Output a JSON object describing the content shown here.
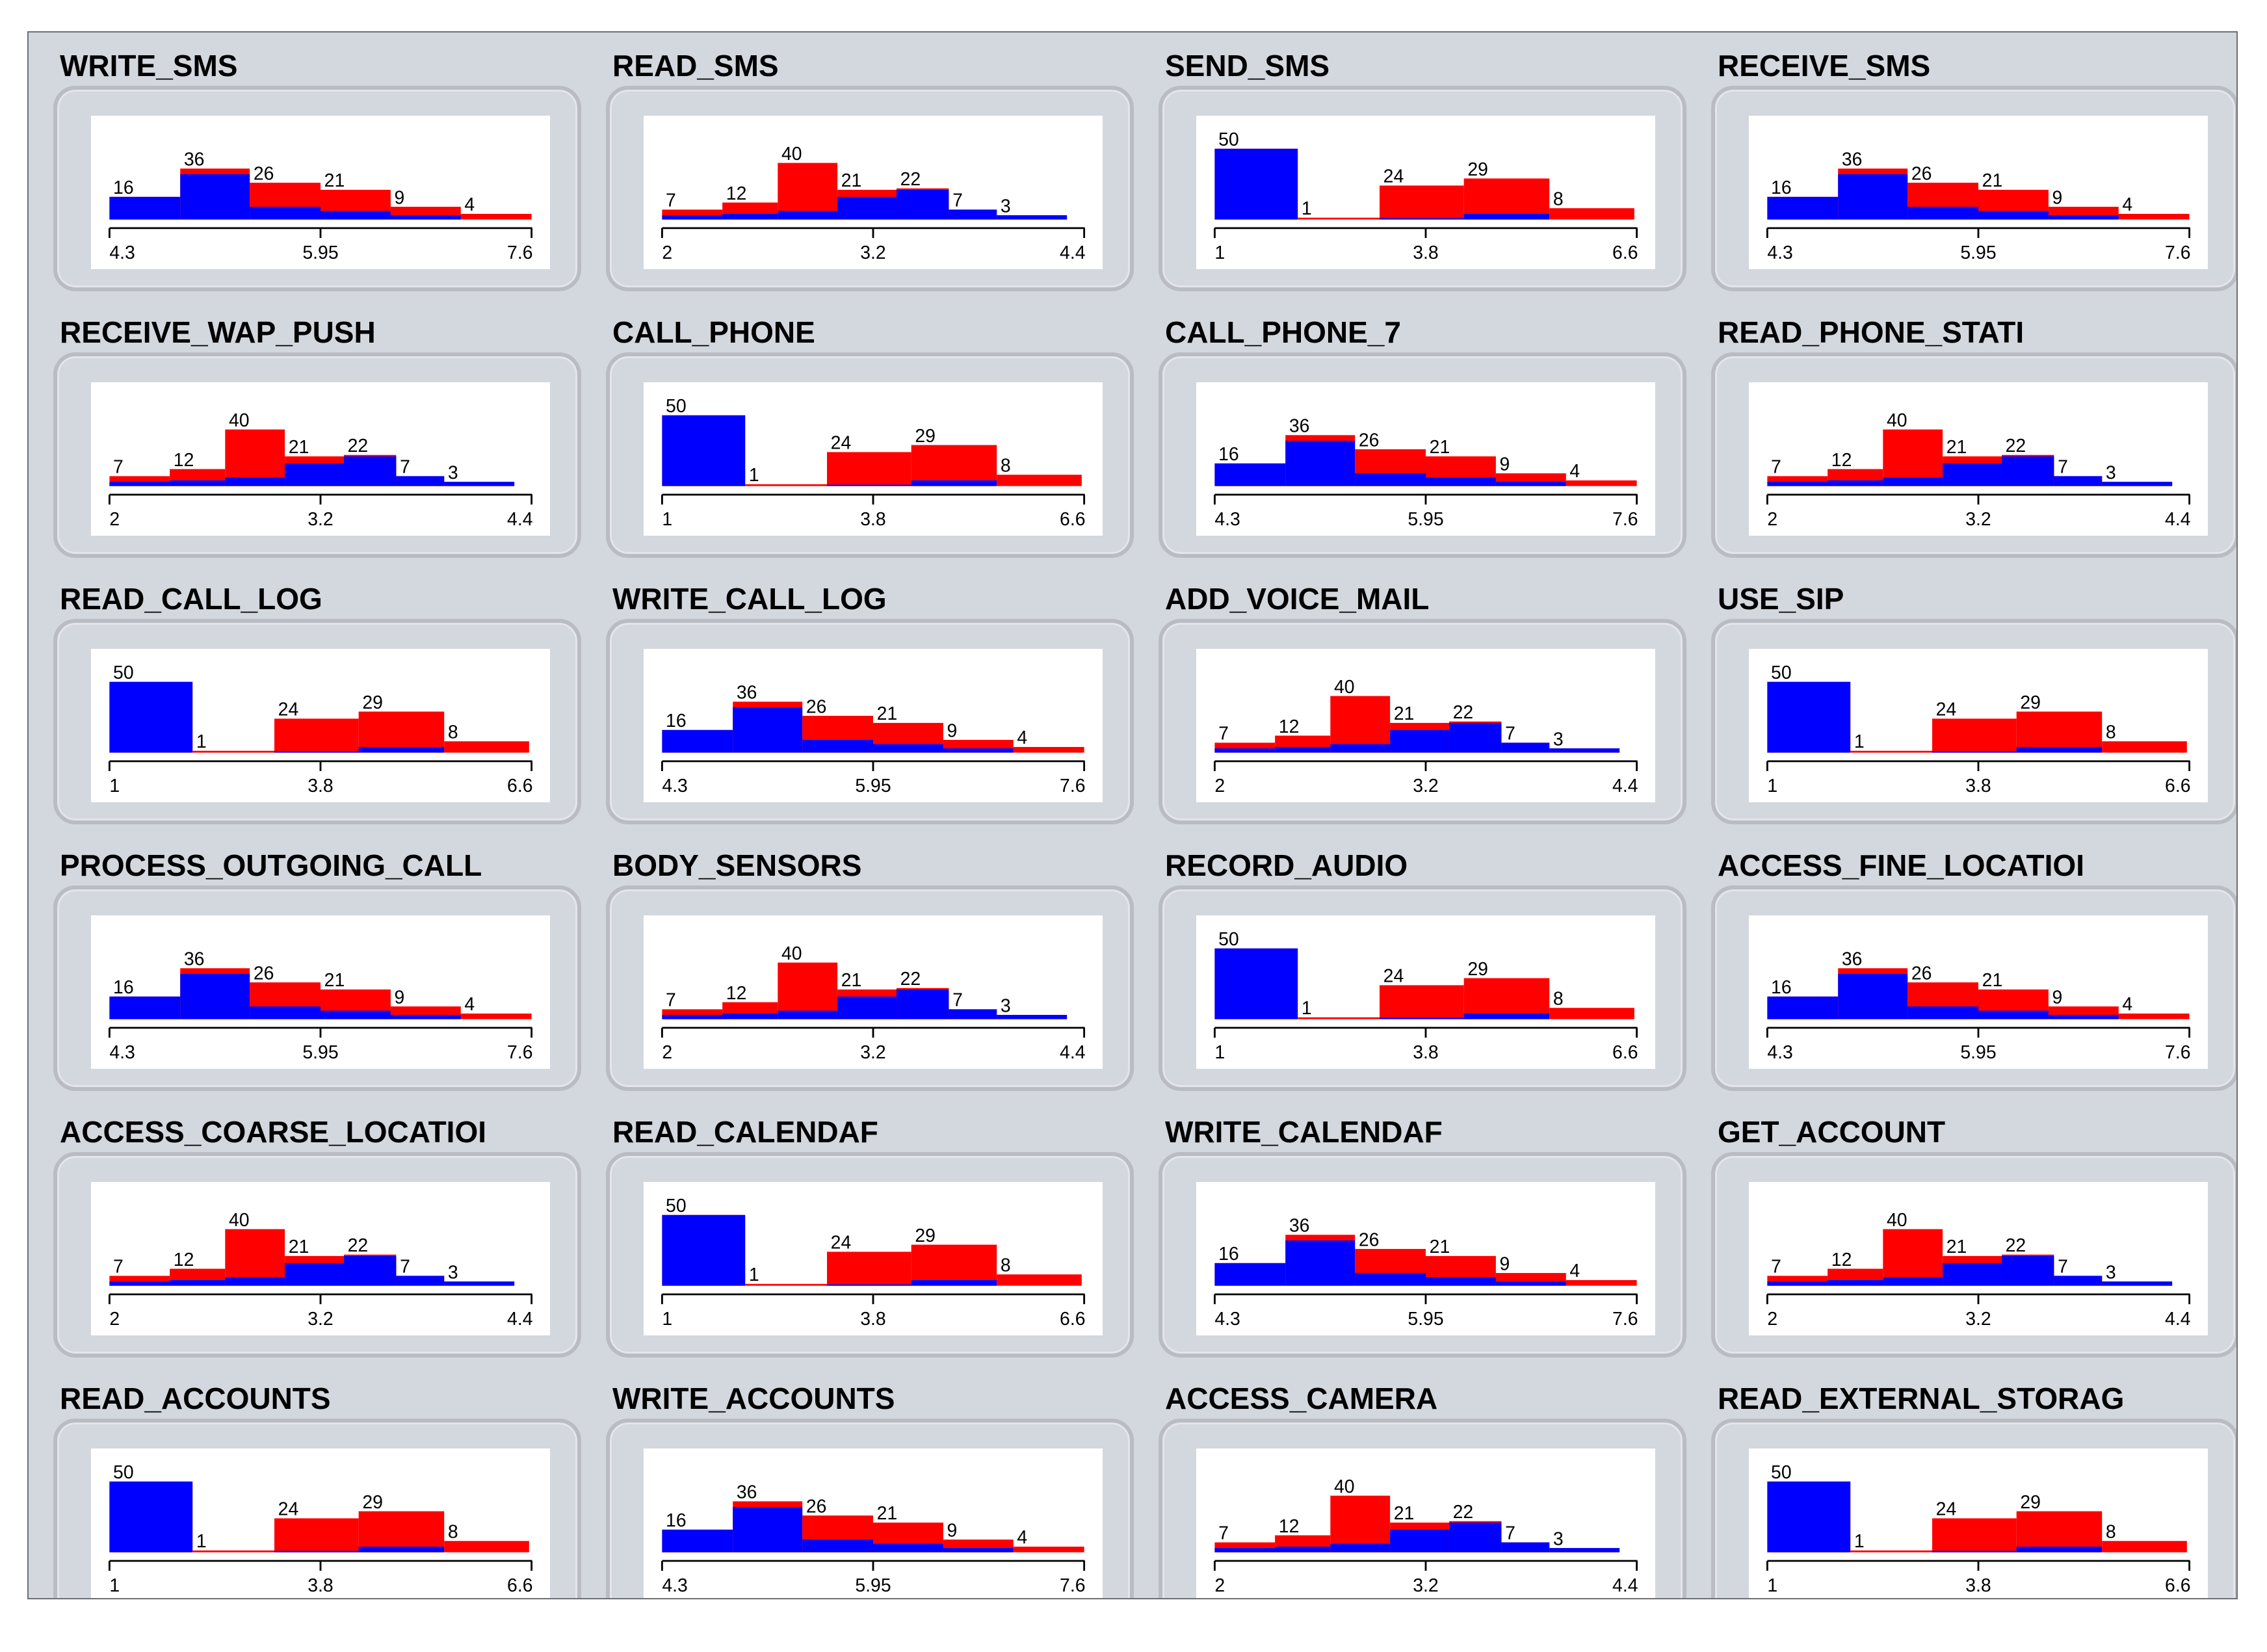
{
  "panel": {
    "columns": 4,
    "colors": {
      "blue": "#0000ff",
      "red": "#ff0000",
      "background": "#d3d7de",
      "plot_background": "#ffffff"
    }
  },
  "chart_data": [
    {
      "type": "bar",
      "title": "WRITE_SMS",
      "profile": "A",
      "ticks": [
        "4.3",
        "5.95",
        "7.6"
      ],
      "xlim": [
        4.3,
        7.6
      ],
      "bin_labels": [
        "16",
        "36",
        "26",
        "21",
        "9",
        "4"
      ],
      "totals": [
        16,
        36,
        26,
        21,
        9,
        4
      ],
      "blue": [
        16,
        32,
        9,
        6,
        3,
        0
      ]
    },
    {
      "type": "bar",
      "title": "READ_SMS",
      "profile": "B",
      "ticks": [
        "2",
        "3.2",
        "4.4"
      ],
      "xlim": [
        2,
        4.4
      ],
      "bin_labels": [
        "7",
        "12",
        "40",
        "21",
        "22",
        "7",
        "3"
      ],
      "totals": [
        7,
        12,
        40,
        21,
        22,
        7,
        3
      ],
      "blue": [
        3,
        4,
        6,
        16,
        21,
        7,
        3
      ]
    },
    {
      "type": "bar",
      "title": "SEND_SMS",
      "profile": "C",
      "ticks": [
        "1",
        "3.8",
        "6.6"
      ],
      "xlim": [
        1,
        6.6
      ],
      "bin_labels": [
        "50",
        "1",
        "24",
        "29",
        "8"
      ],
      "totals": [
        50,
        1,
        24,
        29,
        8
      ],
      "blue": [
        50,
        0,
        1,
        4,
        0
      ]
    },
    {
      "type": "bar",
      "title": "RECEIVE_SMS",
      "profile": "A",
      "ticks": [
        "4.3",
        "5.95",
        "7.6"
      ],
      "xlim": [
        4.3,
        7.6
      ],
      "bin_labels": [
        "16",
        "36",
        "26",
        "21",
        "9",
        "4"
      ],
      "totals": [
        16,
        36,
        26,
        21,
        9,
        4
      ],
      "blue": [
        16,
        32,
        9,
        6,
        3,
        0
      ]
    },
    {
      "type": "bar",
      "title": "RECEIVE_WAP_PUSH",
      "profile": "B",
      "ticks": [
        "2",
        "3.2",
        "4.4"
      ],
      "xlim": [
        2,
        4.4
      ],
      "bin_labels": [
        "7",
        "12",
        "40",
        "21",
        "22",
        "7",
        "3"
      ],
      "totals": [
        7,
        12,
        40,
        21,
        22,
        7,
        3
      ],
      "blue": [
        3,
        4,
        6,
        16,
        21,
        7,
        3
      ]
    },
    {
      "type": "bar",
      "title": "CALL_PHONE",
      "profile": "C",
      "ticks": [
        "1",
        "3.8",
        "6.6"
      ],
      "xlim": [
        1,
        6.6
      ],
      "bin_labels": [
        "50",
        "1",
        "24",
        "29",
        "8"
      ],
      "totals": [
        50,
        1,
        24,
        29,
        8
      ],
      "blue": [
        50,
        0,
        1,
        4,
        0
      ]
    },
    {
      "type": "bar",
      "title": "CALL_PHONE_7",
      "profile": "A",
      "ticks": [
        "4.3",
        "5.95",
        "7.6"
      ],
      "xlim": [
        4.3,
        7.6
      ],
      "bin_labels": [
        "16",
        "36",
        "26",
        "21",
        "9",
        "4"
      ],
      "totals": [
        16,
        36,
        26,
        21,
        9,
        4
      ],
      "blue": [
        16,
        32,
        9,
        6,
        3,
        0
      ]
    },
    {
      "type": "bar",
      "title": "READ_PHONE_STATI",
      "profile": "B",
      "ticks": [
        "2",
        "3.2",
        "4.4"
      ],
      "xlim": [
        2,
        4.4
      ],
      "bin_labels": [
        "7",
        "12",
        "40",
        "21",
        "22",
        "7",
        "3"
      ],
      "totals": [
        7,
        12,
        40,
        21,
        22,
        7,
        3
      ],
      "blue": [
        3,
        4,
        6,
        16,
        21,
        7,
        3
      ]
    },
    {
      "type": "bar",
      "title": "READ_CALL_LOG",
      "profile": "C",
      "ticks": [
        "1",
        "3.8",
        "6.6"
      ],
      "xlim": [
        1,
        6.6
      ],
      "bin_labels": [
        "50",
        "1",
        "24",
        "29",
        "8"
      ],
      "totals": [
        50,
        1,
        24,
        29,
        8
      ],
      "blue": [
        50,
        0,
        1,
        4,
        0
      ]
    },
    {
      "type": "bar",
      "title": "WRITE_CALL_LOG",
      "profile": "A",
      "ticks": [
        "4.3",
        "5.95",
        "7.6"
      ],
      "xlim": [
        4.3,
        7.6
      ],
      "bin_labels": [
        "16",
        "36",
        "26",
        "21",
        "9",
        "4"
      ],
      "totals": [
        16,
        36,
        26,
        21,
        9,
        4
      ],
      "blue": [
        16,
        32,
        9,
        6,
        3,
        0
      ]
    },
    {
      "type": "bar",
      "title": "ADD_VOICE_MAIL",
      "profile": "B",
      "ticks": [
        "2",
        "3.2",
        "4.4"
      ],
      "xlim": [
        2,
        4.4
      ],
      "bin_labels": [
        "7",
        "12",
        "40",
        "21",
        "22",
        "7",
        "3"
      ],
      "totals": [
        7,
        12,
        40,
        21,
        22,
        7,
        3
      ],
      "blue": [
        3,
        4,
        6,
        16,
        21,
        7,
        3
      ]
    },
    {
      "type": "bar",
      "title": "USE_SIP",
      "profile": "C",
      "ticks": [
        "1",
        "3.8",
        "6.6"
      ],
      "xlim": [
        1,
        6.6
      ],
      "bin_labels": [
        "50",
        "1",
        "24",
        "29",
        "8"
      ],
      "totals": [
        50,
        1,
        24,
        29,
        8
      ],
      "blue": [
        50,
        0,
        1,
        4,
        0
      ]
    },
    {
      "type": "bar",
      "title": "PROCESS_OUTGOING_CALL",
      "profile": "A",
      "ticks": [
        "4.3",
        "5.95",
        "7.6"
      ],
      "xlim": [
        4.3,
        7.6
      ],
      "bin_labels": [
        "16",
        "36",
        "26",
        "21",
        "9",
        "4"
      ],
      "totals": [
        16,
        36,
        26,
        21,
        9,
        4
      ],
      "blue": [
        16,
        32,
        9,
        6,
        3,
        0
      ]
    },
    {
      "type": "bar",
      "title": "BODY_SENSORS",
      "profile": "B",
      "ticks": [
        "2",
        "3.2",
        "4.4"
      ],
      "xlim": [
        2,
        4.4
      ],
      "bin_labels": [
        "7",
        "12",
        "40",
        "21",
        "22",
        "7",
        "3"
      ],
      "totals": [
        7,
        12,
        40,
        21,
        22,
        7,
        3
      ],
      "blue": [
        3,
        4,
        6,
        16,
        21,
        7,
        3
      ]
    },
    {
      "type": "bar",
      "title": "RECORD_AUDIO",
      "profile": "C",
      "ticks": [
        "1",
        "3.8",
        "6.6"
      ],
      "xlim": [
        1,
        6.6
      ],
      "bin_labels": [
        "50",
        "1",
        "24",
        "29",
        "8"
      ],
      "totals": [
        50,
        1,
        24,
        29,
        8
      ],
      "blue": [
        50,
        0,
        1,
        4,
        0
      ]
    },
    {
      "type": "bar",
      "title": "ACCESS_FINE_LOCATIOI",
      "profile": "A",
      "ticks": [
        "4.3",
        "5.95",
        "7.6"
      ],
      "xlim": [
        4.3,
        7.6
      ],
      "bin_labels": [
        "16",
        "36",
        "26",
        "21",
        "9",
        "4"
      ],
      "totals": [
        16,
        36,
        26,
        21,
        9,
        4
      ],
      "blue": [
        16,
        32,
        9,
        6,
        3,
        0
      ]
    },
    {
      "type": "bar",
      "title": "ACCESS_COARSE_LOCATIOI",
      "profile": "B",
      "ticks": [
        "2",
        "3.2",
        "4.4"
      ],
      "xlim": [
        2,
        4.4
      ],
      "bin_labels": [
        "7",
        "12",
        "40",
        "21",
        "22",
        "7",
        "3"
      ],
      "totals": [
        7,
        12,
        40,
        21,
        22,
        7,
        3
      ],
      "blue": [
        3,
        4,
        6,
        16,
        21,
        7,
        3
      ]
    },
    {
      "type": "bar",
      "title": "READ_CALENDAF",
      "profile": "C",
      "ticks": [
        "1",
        "3.8",
        "6.6"
      ],
      "xlim": [
        1,
        6.6
      ],
      "bin_labels": [
        "50",
        "1",
        "24",
        "29",
        "8"
      ],
      "totals": [
        50,
        1,
        24,
        29,
        8
      ],
      "blue": [
        50,
        0,
        1,
        4,
        0
      ]
    },
    {
      "type": "bar",
      "title": "WRITE_CALENDAF",
      "profile": "A",
      "ticks": [
        "4.3",
        "5.95",
        "7.6"
      ],
      "xlim": [
        4.3,
        7.6
      ],
      "bin_labels": [
        "16",
        "36",
        "26",
        "21",
        "9",
        "4"
      ],
      "totals": [
        16,
        36,
        26,
        21,
        9,
        4
      ],
      "blue": [
        16,
        32,
        9,
        6,
        3,
        0
      ]
    },
    {
      "type": "bar",
      "title": "GET_ACCOUNT",
      "profile": "B",
      "ticks": [
        "2",
        "3.2",
        "4.4"
      ],
      "xlim": [
        2,
        4.4
      ],
      "bin_labels": [
        "7",
        "12",
        "40",
        "21",
        "22",
        "7",
        "3"
      ],
      "totals": [
        7,
        12,
        40,
        21,
        22,
        7,
        3
      ],
      "blue": [
        3,
        4,
        6,
        16,
        21,
        7,
        3
      ]
    },
    {
      "type": "bar",
      "title": "READ_ACCOUNTS",
      "profile": "C",
      "ticks": [
        "1",
        "3.8",
        "6.6"
      ],
      "xlim": [
        1,
        6.6
      ],
      "bin_labels": [
        "50",
        "1",
        "24",
        "29",
        "8"
      ],
      "totals": [
        50,
        1,
        24,
        29,
        8
      ],
      "blue": [
        50,
        0,
        1,
        4,
        0
      ]
    },
    {
      "type": "bar",
      "title": "WRITE_ACCOUNTS",
      "profile": "A",
      "ticks": [
        "4.3",
        "5.95",
        "7.6"
      ],
      "xlim": [
        4.3,
        7.6
      ],
      "bin_labels": [
        "16",
        "36",
        "26",
        "21",
        "9",
        "4"
      ],
      "totals": [
        16,
        36,
        26,
        21,
        9,
        4
      ],
      "blue": [
        16,
        32,
        9,
        6,
        3,
        0
      ]
    },
    {
      "type": "bar",
      "title": "ACCESS_CAMERA",
      "profile": "B",
      "ticks": [
        "2",
        "3.2",
        "4.4"
      ],
      "xlim": [
        2,
        4.4
      ],
      "bin_labels": [
        "7",
        "12",
        "40",
        "21",
        "22",
        "7",
        "3"
      ],
      "totals": [
        7,
        12,
        40,
        21,
        22,
        7,
        3
      ],
      "blue": [
        3,
        4,
        6,
        16,
        21,
        7,
        3
      ]
    },
    {
      "type": "bar",
      "title": "READ_EXTERNAL_STORAG",
      "profile": "C",
      "ticks": [
        "1",
        "3.8",
        "6.6"
      ],
      "xlim": [
        1,
        6.6
      ],
      "bin_labels": [
        "50",
        "1",
        "24",
        "29",
        "8"
      ],
      "totals": [
        50,
        1,
        24,
        29,
        8
      ],
      "blue": [
        50,
        0,
        1,
        4,
        0
      ]
    }
  ]
}
